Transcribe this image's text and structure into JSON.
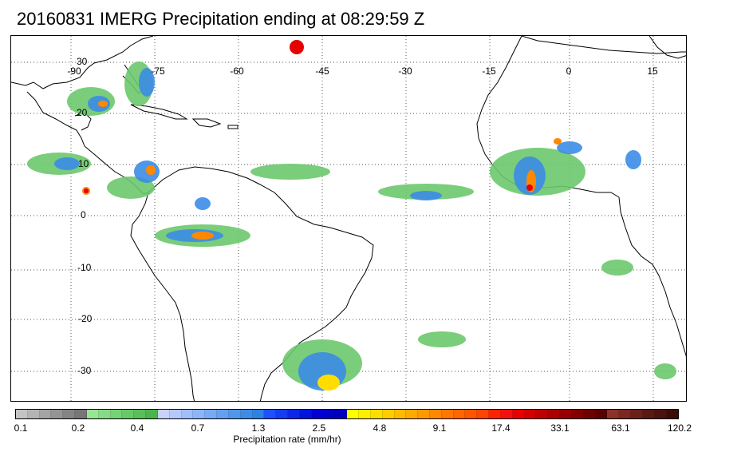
{
  "title": "20160831 IMERG Precipitation ending at 08:29:59 Z",
  "map": {
    "lon_labels": [
      "-90",
      "-75",
      "-60",
      "-45",
      "-30",
      "-15",
      "0",
      "15"
    ],
    "lat_labels": [
      "30",
      "20",
      "10",
      "0",
      "-10",
      "-20",
      "-30"
    ],
    "grid_style": "dotted",
    "coastline_color": "#000000"
  },
  "colorbar": {
    "colors": [
      "#c4c4c4",
      "#b4b4b4",
      "#a4a4a4",
      "#949494",
      "#848484",
      "#767676",
      "#96e696",
      "#86dc86",
      "#76d276",
      "#68c868",
      "#5abe5a",
      "#4cb44c",
      "#c8d2fa",
      "#b4c8fa",
      "#a0befa",
      "#8cb4fa",
      "#78aaf5",
      "#64a0f0",
      "#5096eb",
      "#3c8ce6",
      "#2a82e1",
      "#1e50ff",
      "#143cf0",
      "#0a28e6",
      "#0014dc",
      "#0000d2",
      "#0000c8",
      "#0000be",
      "#ffff00",
      "#ffee00",
      "#ffdd00",
      "#ffcc00",
      "#ffbb00",
      "#ffaa00",
      "#ff9900",
      "#ff8800",
      "#ff7700",
      "#ff6600",
      "#ff5500",
      "#ff4400",
      "#ff2200",
      "#f51010",
      "#e60000",
      "#d20000",
      "#be0000",
      "#aa0000",
      "#960000",
      "#820000",
      "#6e0000",
      "#5a0000",
      "#8c3228",
      "#7a2820",
      "#6a2018",
      "#5a1812",
      "#4c120c",
      "#3e0c08"
    ],
    "tick_labels": [
      "0.1",
      "0.2",
      "0.4",
      "0.7",
      "1.3",
      "2.5",
      "4.8",
      "9.1",
      "17.4",
      "33.1",
      "63.1",
      "120.2"
    ],
    "label": "Precipitation rate (mm/hr)"
  }
}
